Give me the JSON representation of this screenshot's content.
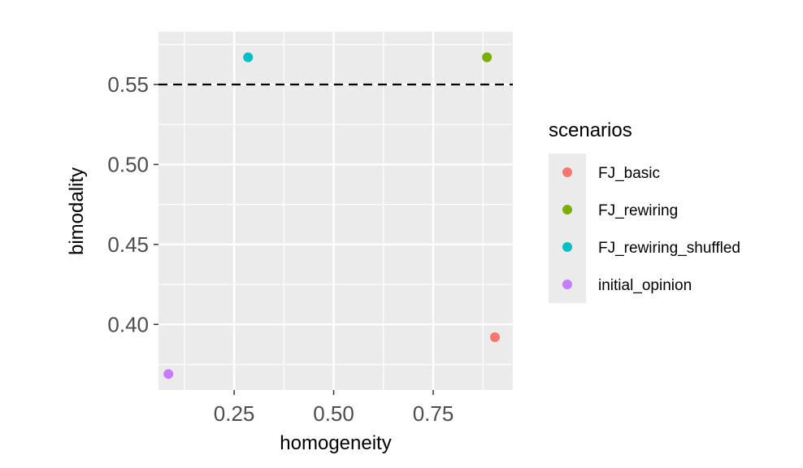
{
  "chart_data": {
    "type": "scatter",
    "xlabel": "homogeneity",
    "ylabel": "bimodality",
    "xlim": [
      0.06,
      0.95
    ],
    "ylim": [
      0.359,
      0.583
    ],
    "x_ticks": [
      0.25,
      0.5,
      0.75
    ],
    "x_tick_labels": [
      "0.25",
      "0.50",
      "0.75"
    ],
    "x_minor_ticks": [
      0.125,
      0.375,
      0.625,
      0.875
    ],
    "y_ticks": [
      0.4,
      0.45,
      0.5,
      0.55
    ],
    "y_tick_labels": [
      "0.40",
      "0.45",
      "0.50",
      "0.55"
    ],
    "y_minor_ticks": [
      0.375,
      0.425,
      0.475,
      0.525,
      0.575
    ],
    "hline": {
      "y": 0.55,
      "style": "dashed",
      "color": "#000000"
    },
    "grid": true,
    "background": "#ebebeb",
    "legend": {
      "title": "scenarios",
      "placement": "right"
    },
    "series": [
      {
        "name": "FJ_basic",
        "color": "#F8766D",
        "points": [
          {
            "x": 0.905,
            "y": 0.392
          }
        ]
      },
      {
        "name": "FJ_rewiring",
        "color": "#7CAE00",
        "points": [
          {
            "x": 0.885,
            "y": 0.567
          }
        ]
      },
      {
        "name": "FJ_rewiring_shuffled",
        "color": "#00BFC4",
        "points": [
          {
            "x": 0.285,
            "y": 0.567
          }
        ]
      },
      {
        "name": "initial_opinion",
        "color": "#C77CFF",
        "points": [
          {
            "x": 0.085,
            "y": 0.369
          }
        ]
      }
    ]
  }
}
